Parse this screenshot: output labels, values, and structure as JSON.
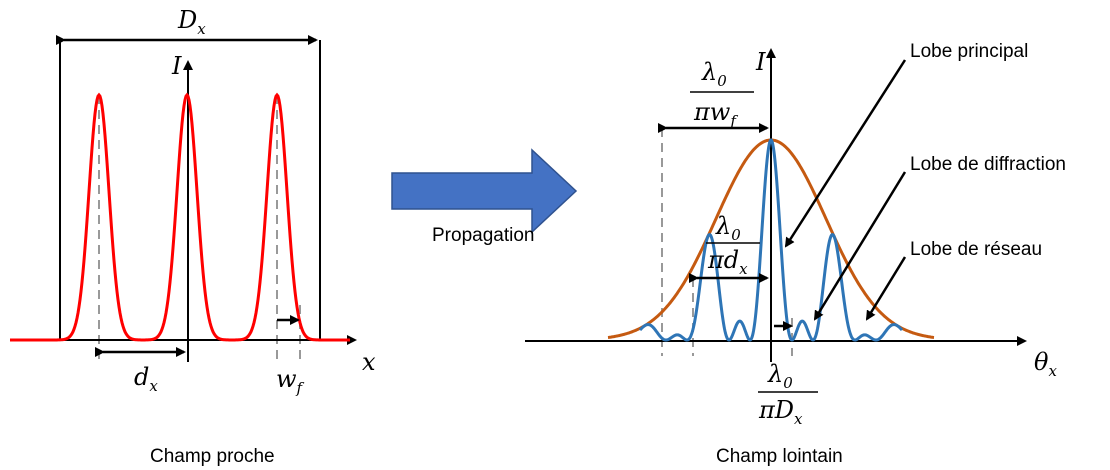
{
  "left_panel": {
    "caption": "Champ proche",
    "axis_x": "x",
    "axis_y": "I",
    "width_symbol": "D",
    "width_sub": "x",
    "spacing_symbol": "d",
    "spacing_sub": "x",
    "waist_symbol": "w",
    "waist_sub": "f"
  },
  "arrow": {
    "label": "Propagation"
  },
  "right_panel": {
    "caption": "Champ lointain",
    "axis_x_symbol": "θ",
    "axis_x_sub": "x",
    "axis_y": "I",
    "envelope_num": "λ",
    "envelope_num_sub": "0",
    "envelope_den": "πw",
    "envelope_den_sub": "f",
    "grating_num": "λ",
    "grating_num_sub": "0",
    "grating_den": "πd",
    "grating_den_sub": "x",
    "main_num": "λ",
    "main_num_sub": "0",
    "main_den": "πD",
    "main_den_sub": "x",
    "labels": {
      "main_lobe": "Lobe principal",
      "diffraction_lobe": "Lobe de diffraction",
      "grating_lobe": "Lobe de réseau"
    }
  },
  "colors": {
    "near_field": "#ff0000",
    "far_field": "#2e75b6",
    "envelope": "#c55a11",
    "propagation_arrow": "#4472c4"
  }
}
